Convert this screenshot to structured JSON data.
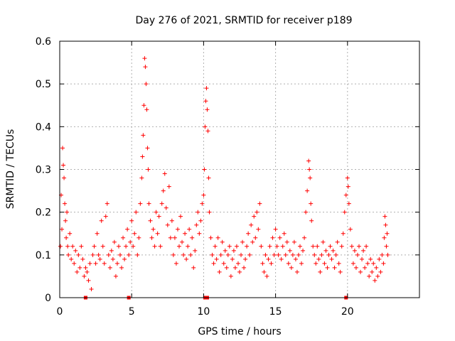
{
  "chart_data": {
    "type": "scatter",
    "title": "Day 276 of 2021, SRMTID for receiver p189",
    "xlabel": "GPS time / hours",
    "ylabel": "SRMTID / TECUs",
    "xlim": [
      0,
      25
    ],
    "ylim": [
      0,
      0.6
    ],
    "x_ticks": [
      0,
      5,
      10,
      15,
      20
    ],
    "x_tick_labels": [
      "0",
      "5",
      "10",
      "15",
      "20"
    ],
    "y_ticks": [
      0,
      0.1,
      0.2,
      0.3,
      0.4,
      0.5,
      0.6
    ],
    "y_tick_labels": [
      "0",
      "0.1",
      "0.2",
      "0.3",
      "0.4",
      "0.5",
      "0.6"
    ],
    "grid": true,
    "marker": "+",
    "color": "#ff0000",
    "baseline_markers_x": [
      1.8,
      4.8,
      10.1,
      10.25,
      19.9
    ],
    "series": [
      {
        "name": "SRMTID",
        "points": [
          [
            0.05,
            0.12
          ],
          [
            0.1,
            0.24
          ],
          [
            0.15,
            0.16
          ],
          [
            0.2,
            0.35
          ],
          [
            0.25,
            0.31
          ],
          [
            0.3,
            0.28
          ],
          [
            0.35,
            0.22
          ],
          [
            0.4,
            0.18
          ],
          [
            0.45,
            0.14
          ],
          [
            0.5,
            0.2
          ],
          [
            0.55,
            0.12
          ],
          [
            0.6,
            0.1
          ],
          [
            0.7,
            0.15
          ],
          [
            0.8,
            0.09
          ],
          [
            0.9,
            0.12
          ],
          [
            1.0,
            0.08
          ],
          [
            1.1,
            0.11
          ],
          [
            1.2,
            0.06
          ],
          [
            1.3,
            0.1
          ],
          [
            1.4,
            0.07
          ],
          [
            1.5,
            0.12
          ],
          [
            1.6,
            0.09
          ],
          [
            1.7,
            0.05
          ],
          [
            1.8,
            0.07
          ],
          [
            1.9,
            0.06
          ],
          [
            2.0,
            0.04
          ],
          [
            2.1,
            0.08
          ],
          [
            2.2,
            0.02
          ],
          [
            2.3,
            0.1
          ],
          [
            2.4,
            0.12
          ],
          [
            2.5,
            0.08
          ],
          [
            2.6,
            0.15
          ],
          [
            2.7,
            0.1
          ],
          [
            2.8,
            0.09
          ],
          [
            2.9,
            0.18
          ],
          [
            3.0,
            0.12
          ],
          [
            3.1,
            0.08
          ],
          [
            3.2,
            0.19
          ],
          [
            3.3,
            0.22
          ],
          [
            3.4,
            0.1
          ],
          [
            3.5,
            0.07
          ],
          [
            3.6,
            0.11
          ],
          [
            3.7,
            0.09
          ],
          [
            3.8,
            0.13
          ],
          [
            3.9,
            0.05
          ],
          [
            4.0,
            0.08
          ],
          [
            4.1,
            0.12
          ],
          [
            4.2,
            0.1
          ],
          [
            4.3,
            0.07
          ],
          [
            4.4,
            0.14
          ],
          [
            4.5,
            0.09
          ],
          [
            4.6,
            0.12
          ],
          [
            4.7,
            0.16
          ],
          [
            4.8,
            0.1
          ],
          [
            4.9,
            0.13
          ],
          [
            5.0,
            0.18
          ],
          [
            5.1,
            0.12
          ],
          [
            5.2,
            0.15
          ],
          [
            5.3,
            0.2
          ],
          [
            5.4,
            0.1
          ],
          [
            5.5,
            0.14
          ],
          [
            5.6,
            0.22
          ],
          [
            5.7,
            0.28
          ],
          [
            5.75,
            0.33
          ],
          [
            5.8,
            0.38
          ],
          [
            5.85,
            0.45
          ],
          [
            5.9,
            0.56
          ],
          [
            5.95,
            0.54
          ],
          [
            6.0,
            0.5
          ],
          [
            6.05,
            0.44
          ],
          [
            6.1,
            0.35
          ],
          [
            6.15,
            0.3
          ],
          [
            6.2,
            0.22
          ],
          [
            6.3,
            0.18
          ],
          [
            6.4,
            0.14
          ],
          [
            6.5,
            0.16
          ],
          [
            6.6,
            0.12
          ],
          [
            6.7,
            0.2
          ],
          [
            6.8,
            0.15
          ],
          [
            6.9,
            0.19
          ],
          [
            7.0,
            0.12
          ],
          [
            7.1,
            0.22
          ],
          [
            7.2,
            0.25
          ],
          [
            7.3,
            0.29
          ],
          [
            7.4,
            0.21
          ],
          [
            7.5,
            0.17
          ],
          [
            7.6,
            0.26
          ],
          [
            7.7,
            0.14
          ],
          [
            7.8,
            0.18
          ],
          [
            7.9,
            0.1
          ],
          [
            8.0,
            0.14
          ],
          [
            8.1,
            0.08
          ],
          [
            8.2,
            0.16
          ],
          [
            8.3,
            0.12
          ],
          [
            8.4,
            0.19
          ],
          [
            8.5,
            0.13
          ],
          [
            8.6,
            0.1
          ],
          [
            8.7,
            0.15
          ],
          [
            8.8,
            0.09
          ],
          [
            8.9,
            0.12
          ],
          [
            9.0,
            0.16
          ],
          [
            9.1,
            0.1
          ],
          [
            9.2,
            0.14
          ],
          [
            9.3,
            0.07
          ],
          [
            9.4,
            0.11
          ],
          [
            9.5,
            0.17
          ],
          [
            9.6,
            0.2
          ],
          [
            9.7,
            0.15
          ],
          [
            9.8,
            0.18
          ],
          [
            9.9,
            0.22
          ],
          [
            10.0,
            0.24
          ],
          [
            10.05,
            0.3
          ],
          [
            10.1,
            0.4
          ],
          [
            10.15,
            0.46
          ],
          [
            10.2,
            0.49
          ],
          [
            10.25,
            0.44
          ],
          [
            10.3,
            0.39
          ],
          [
            10.35,
            0.28
          ],
          [
            10.4,
            0.2
          ],
          [
            10.5,
            0.14
          ],
          [
            10.6,
            0.1
          ],
          [
            10.7,
            0.08
          ],
          [
            10.8,
            0.12
          ],
          [
            10.9,
            0.09
          ],
          [
            11.0,
            0.14
          ],
          [
            11.1,
            0.06
          ],
          [
            11.2,
            0.1
          ],
          [
            11.3,
            0.13
          ],
          [
            11.4,
            0.08
          ],
          [
            11.5,
            0.11
          ],
          [
            11.6,
            0.07
          ],
          [
            11.7,
            0.1
          ],
          [
            11.8,
            0.12
          ],
          [
            11.9,
            0.05
          ],
          [
            12.0,
            0.09
          ],
          [
            12.1,
            0.11
          ],
          [
            12.2,
            0.07
          ],
          [
            12.3,
            0.12
          ],
          [
            12.4,
            0.08
          ],
          [
            12.5,
            0.06
          ],
          [
            12.6,
            0.1
          ],
          [
            12.7,
            0.13
          ],
          [
            12.8,
            0.07
          ],
          [
            12.9,
            0.09
          ],
          [
            13.0,
            0.12
          ],
          [
            13.1,
            0.15
          ],
          [
            13.2,
            0.1
          ],
          [
            13.3,
            0.17
          ],
          [
            13.4,
            0.13
          ],
          [
            13.5,
            0.19
          ],
          [
            13.6,
            0.14
          ],
          [
            13.7,
            0.2
          ],
          [
            13.8,
            0.16
          ],
          [
            13.9,
            0.22
          ],
          [
            14.0,
            0.12
          ],
          [
            14.1,
            0.08
          ],
          [
            14.2,
            0.06
          ],
          [
            14.3,
            0.1
          ],
          [
            14.4,
            0.05
          ],
          [
            14.5,
            0.09
          ],
          [
            14.6,
            0.12
          ],
          [
            14.7,
            0.08
          ],
          [
            14.8,
            0.14
          ],
          [
            14.9,
            0.1
          ],
          [
            15.0,
            0.16
          ],
          [
            15.1,
            0.12
          ],
          [
            15.2,
            0.1
          ],
          [
            15.3,
            0.14
          ],
          [
            15.4,
            0.09
          ],
          [
            15.5,
            0.12
          ],
          [
            15.6,
            0.15
          ],
          [
            15.7,
            0.1
          ],
          [
            15.8,
            0.13
          ],
          [
            15.9,
            0.08
          ],
          [
            16.0,
            0.11
          ],
          [
            16.1,
            0.07
          ],
          [
            16.2,
            0.1
          ],
          [
            16.3,
            0.13
          ],
          [
            16.4,
            0.09
          ],
          [
            16.5,
            0.06
          ],
          [
            16.6,
            0.1
          ],
          [
            16.7,
            0.12
          ],
          [
            16.8,
            0.08
          ],
          [
            16.9,
            0.11
          ],
          [
            17.0,
            0.14
          ],
          [
            17.1,
            0.2
          ],
          [
            17.2,
            0.25
          ],
          [
            17.3,
            0.32
          ],
          [
            17.35,
            0.3
          ],
          [
            17.4,
            0.28
          ],
          [
            17.45,
            0.22
          ],
          [
            17.5,
            0.18
          ],
          [
            17.6,
            0.12
          ],
          [
            17.7,
            0.1
          ],
          [
            17.8,
            0.08
          ],
          [
            17.9,
            0.12
          ],
          [
            18.0,
            0.09
          ],
          [
            18.1,
            0.06
          ],
          [
            18.2,
            0.1
          ],
          [
            18.3,
            0.13
          ],
          [
            18.4,
            0.08
          ],
          [
            18.5,
            0.11
          ],
          [
            18.6,
            0.07
          ],
          [
            18.7,
            0.1
          ],
          [
            18.8,
            0.12
          ],
          [
            18.9,
            0.09
          ],
          [
            19.0,
            0.11
          ],
          [
            19.1,
            0.07
          ],
          [
            19.2,
            0.1
          ],
          [
            19.3,
            0.13
          ],
          [
            19.4,
            0.08
          ],
          [
            19.5,
            0.06
          ],
          [
            19.6,
            0.12
          ],
          [
            19.7,
            0.15
          ],
          [
            19.8,
            0.2
          ],
          [
            19.9,
            0.24
          ],
          [
            20.0,
            0.28
          ],
          [
            20.05,
            0.26
          ],
          [
            20.1,
            0.22
          ],
          [
            20.2,
            0.16
          ],
          [
            20.3,
            0.12
          ],
          [
            20.4,
            0.08
          ],
          [
            20.5,
            0.11
          ],
          [
            20.6,
            0.07
          ],
          [
            20.7,
            0.1
          ],
          [
            20.8,
            0.12
          ],
          [
            20.9,
            0.06
          ],
          [
            21.0,
            0.09
          ],
          [
            21.1,
            0.11
          ],
          [
            21.2,
            0.07
          ],
          [
            21.3,
            0.12
          ],
          [
            21.4,
            0.08
          ],
          [
            21.5,
            0.05
          ],
          [
            21.6,
            0.09
          ],
          [
            21.7,
            0.06
          ],
          [
            21.8,
            0.08
          ],
          [
            21.9,
            0.04
          ],
          [
            22.0,
            0.07
          ],
          [
            22.1,
            0.05
          ],
          [
            22.2,
            0.09
          ],
          [
            22.3,
            0.06
          ],
          [
            22.4,
            0.1
          ],
          [
            22.5,
            0.08
          ],
          [
            22.55,
            0.14
          ],
          [
            22.6,
            0.19
          ],
          [
            22.65,
            0.17
          ],
          [
            22.7,
            0.12
          ],
          [
            22.75,
            0.15
          ],
          [
            22.8,
            0.1
          ]
        ]
      }
    ]
  }
}
